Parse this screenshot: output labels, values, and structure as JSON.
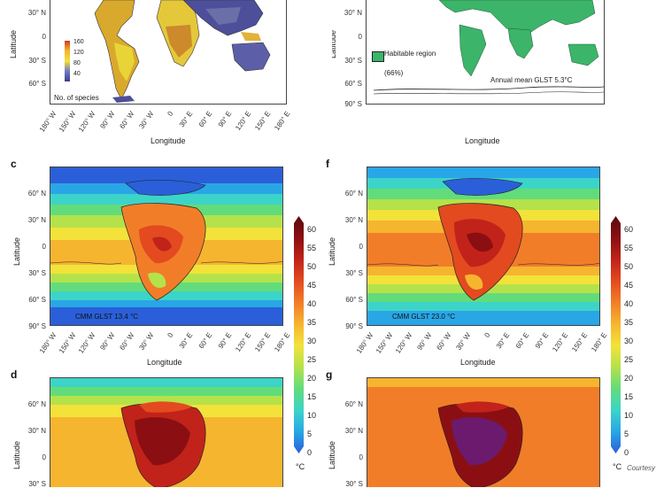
{
  "axes": {
    "lat_ticks_top": [
      "30° N",
      "0",
      "30° S",
      "60° S",
      "90° S"
    ],
    "lat_ticks_mid": [
      "60° N",
      "30° N",
      "0",
      "30° S",
      "60° S",
      "90° S"
    ],
    "lat_ticks_bot": [
      "60° N",
      "30° N",
      "0",
      "30° S"
    ],
    "lon_ticks": [
      "180° W",
      "150° W",
      "120° W",
      "90° W",
      "60° W",
      "30° W",
      "0",
      "30° E",
      "60° E",
      "90° E",
      "120° E",
      "150° E",
      "180° E"
    ],
    "ylabel": "Latitude",
    "xlabel": "Longitude"
  },
  "panels": {
    "a": {
      "legend_ticks": [
        "160",
        "120",
        "80",
        "40"
      ],
      "legend_label": "No. of species"
    },
    "b": {
      "habitable_label": "Habitable region",
      "habitable_pct": "(66%)",
      "annotation": "Annual mean GLST 5.3°C"
    },
    "c": {
      "label": "c",
      "annotation": "CMM GLST 13.4 °C"
    },
    "f": {
      "label": "f",
      "annotation": "CMM GLST 23.0 °C"
    },
    "d": {
      "label": "d"
    },
    "g": {
      "label": "g"
    }
  },
  "colorbar": {
    "ticks": [
      "60",
      "55",
      "50",
      "45",
      "40",
      "35",
      "30",
      "25",
      "20",
      "15",
      "10",
      "5",
      "0"
    ],
    "unit": "°C",
    "colors": [
      "#2a5fd9",
      "#29a6e6",
      "#3cd4c9",
      "#62dc7a",
      "#b4e24a",
      "#f2e23a",
      "#f6b52f",
      "#f27d29",
      "#e34a1f",
      "#c1231a",
      "#8b0f12",
      "#5a0a10"
    ]
  },
  "credit": "Courtesy"
}
